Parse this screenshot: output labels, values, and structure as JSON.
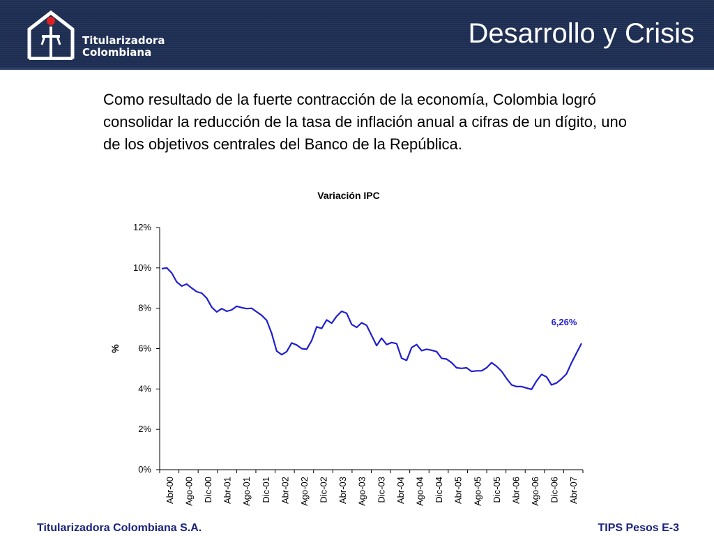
{
  "header": {
    "logo_line1": "Titularizadora",
    "logo_line2": "Colombiana",
    "title": "Desarrollo y Crisis"
  },
  "intro": "Como resultado de la fuerte contracción de la economía, Colombia logró consolidar la reducción de la tasa de inflación anual a cifras de un dígito, uno de los objetivos centrales del Banco de la República.",
  "footer": {
    "left": "Titularizadora Colombiana S.A.",
    "right": "TIPS Pesos E-3"
  },
  "colors": {
    "header_bg": "#1d2d52",
    "line": "#1f1fd0",
    "footer_text": "#1a237e",
    "logo_dot": "#e02020"
  },
  "chart_data": {
    "type": "line",
    "title": "Variación IPC",
    "ylabel": "%",
    "xlabel": "",
    "ylim": [
      0,
      12
    ],
    "yticks": [
      "0%",
      "2%",
      "4%",
      "6%",
      "8%",
      "10%",
      "12%"
    ],
    "x_tick_labels": [
      "Abr-00",
      "Ago-00",
      "Dic-00",
      "Abr-01",
      "Ago-01",
      "Dic-01",
      "Abr-02",
      "Ago-02",
      "Dic-02",
      "Abr-03",
      "Ago-03",
      "Dic-03",
      "Abr-04",
      "Ago-04",
      "Dic-04",
      "Abr-05",
      "Ago-05",
      "Dic-05",
      "Abr-06",
      "Ago-06",
      "Dic-06",
      "Abr-07"
    ],
    "x_start": "2000-04",
    "x_end": "2007-04",
    "series": [
      {
        "values": [
          9.96,
          10.0,
          9.75,
          9.3,
          9.1,
          9.2,
          9.0,
          8.82,
          8.75,
          8.5,
          8.05,
          7.82,
          7.98,
          7.85,
          7.92,
          8.1,
          8.03,
          7.98,
          8.0,
          7.82,
          7.65,
          7.4,
          6.75,
          5.88,
          5.7,
          5.85,
          6.28,
          6.18,
          6.0,
          5.97,
          6.4,
          7.08,
          7.0,
          7.42,
          7.26,
          7.6,
          7.85,
          7.75,
          7.2,
          7.05,
          7.28,
          7.15,
          6.65,
          6.15,
          6.52,
          6.2,
          6.3,
          6.25,
          5.52,
          5.42,
          6.05,
          6.2,
          5.9,
          5.97,
          5.92,
          5.85,
          5.52,
          5.48,
          5.3,
          5.05,
          5.02,
          5.05,
          4.87,
          4.9,
          4.9,
          5.05,
          5.3,
          5.12,
          4.88,
          4.52,
          4.2,
          4.12,
          4.12,
          4.05,
          3.98,
          4.4,
          4.72,
          4.6,
          4.2,
          4.3,
          4.5,
          4.75,
          5.3,
          5.78,
          6.26
        ]
      }
    ],
    "annotation": {
      "text": "6,26%",
      "color": "#1f1fd0"
    }
  }
}
